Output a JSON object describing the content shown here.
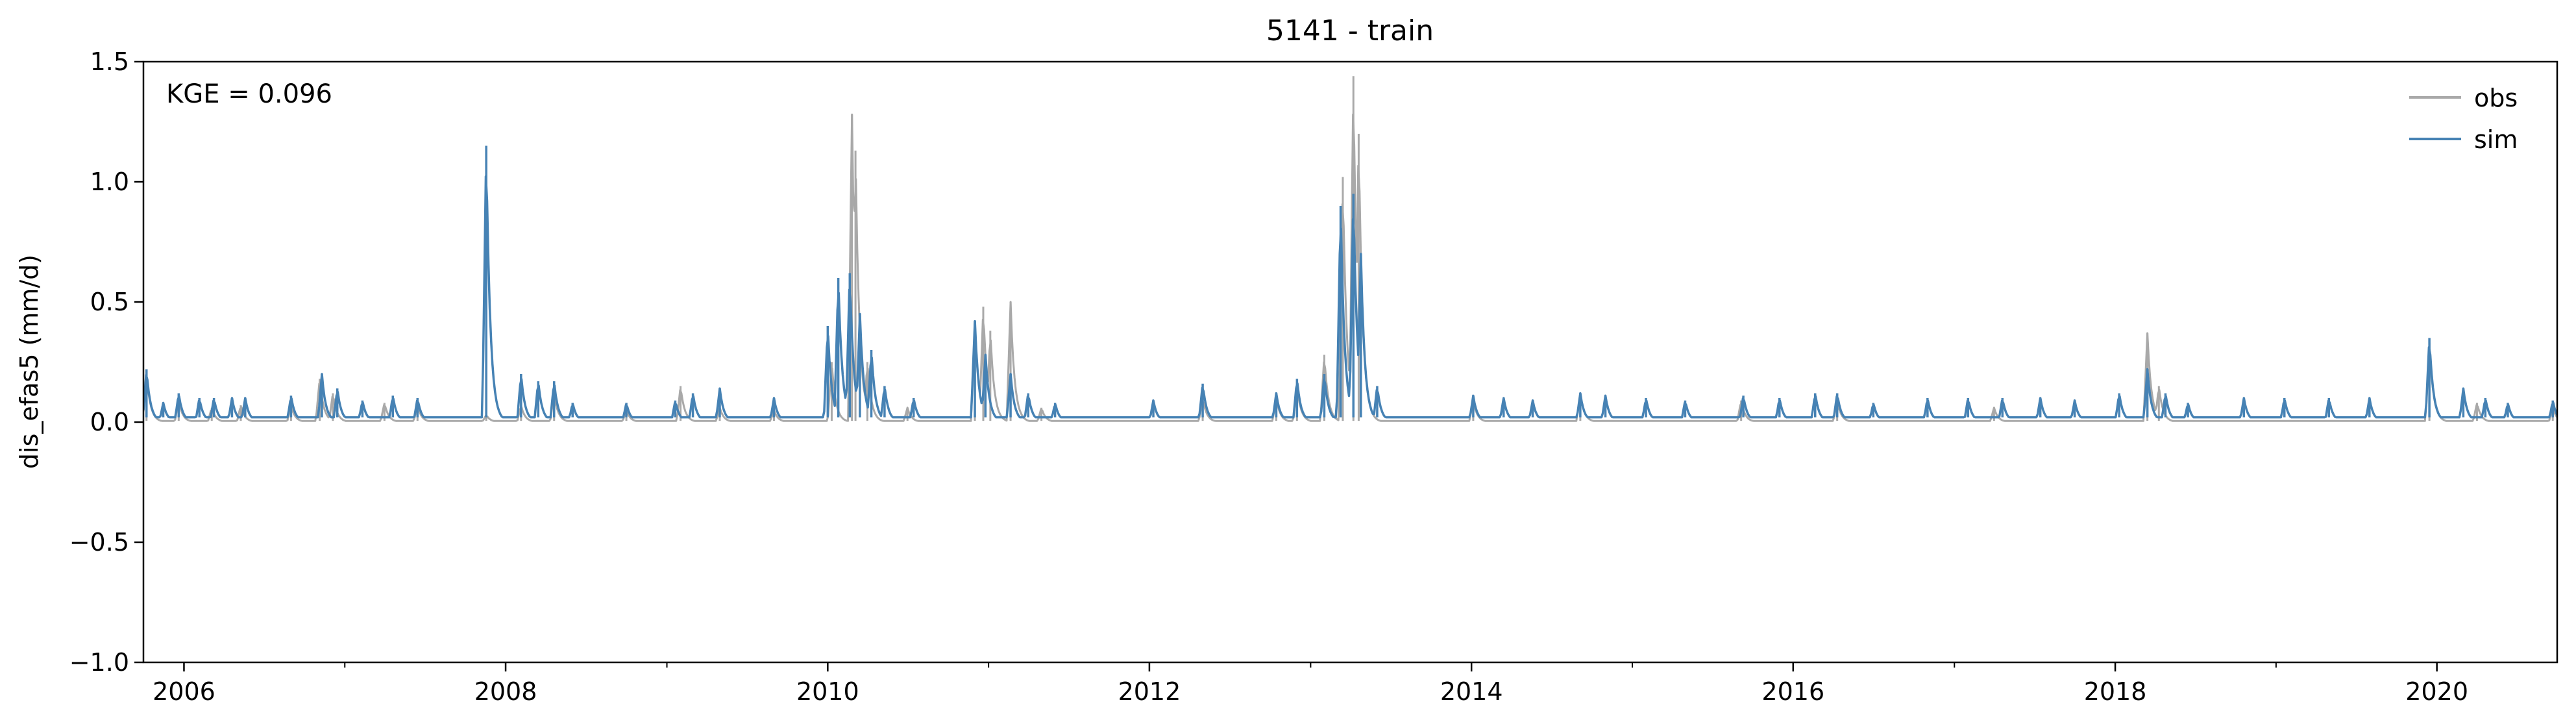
{
  "chart_data": {
    "type": "line",
    "title": "5141 - train",
    "xlabel": "",
    "ylabel": "dis_efas5 (mm/d)",
    "annotation": "KGE = 0.096",
    "xlim": [
      "2005-10-01",
      "2020-09-30"
    ],
    "ylim": [
      -1.0,
      1.5
    ],
    "x_ticks": [
      "2006",
      "2008",
      "2010",
      "2012",
      "2014",
      "2016",
      "2018",
      "2020"
    ],
    "y_ticks": [
      "−1.0",
      "−0.5",
      "0.0",
      "0.5",
      "1.0",
      "1.5"
    ],
    "grid": false,
    "legend": "top-right",
    "series": [
      {
        "name": "obs",
        "color": "#a9a9a9",
        "base": 0.005,
        "events": [
          [
            "2005-10-08",
            0.2
          ],
          [
            "2005-12-20",
            0.09
          ],
          [
            "2006-03-05",
            0.06
          ],
          [
            "2006-05-10",
            0.07
          ],
          [
            "2006-09-01",
            0.07
          ],
          [
            "2006-11-05",
            0.18
          ],
          [
            "2006-12-05",
            0.12
          ],
          [
            "2007-04-01",
            0.08
          ],
          [
            "2007-06-15",
            0.07
          ],
          [
            "2007-11-18",
            0.03
          ],
          [
            "2008-02-05",
            0.07
          ],
          [
            "2008-04-20",
            0.12
          ],
          [
            "2008-10-01",
            0.05
          ],
          [
            "2009-02-01",
            0.15
          ],
          [
            "2009-05-01",
            0.06
          ],
          [
            "2009-09-01",
            0.05
          ],
          [
            "2010-01-10",
            0.25
          ],
          [
            "2010-02-25",
            1.28
          ],
          [
            "2010-03-05",
            1.13
          ],
          [
            "2010-04-01",
            0.25
          ],
          [
            "2010-07-01",
            0.06
          ],
          [
            "2010-12-01",
            0.42
          ],
          [
            "2010-12-20",
            0.48
          ],
          [
            "2011-01-05",
            0.38
          ],
          [
            "2011-02-20",
            0.5
          ],
          [
            "2011-05-01",
            0.06
          ],
          [
            "2012-05-01",
            0.1
          ],
          [
            "2012-10-15",
            0.1
          ],
          [
            "2012-12-01",
            0.15
          ],
          [
            "2013-02-01",
            0.28
          ],
          [
            "2013-03-15",
            1.02
          ],
          [
            "2013-04-08",
            1.44
          ],
          [
            "2013-04-20",
            1.2
          ],
          [
            "2014-01-05",
            0.09
          ],
          [
            "2014-09-05",
            0.12
          ],
          [
            "2015-09-05",
            0.09
          ],
          [
            "2016-04-10",
            0.09
          ],
          [
            "2017-04-01",
            0.06
          ],
          [
            "2018-03-15",
            0.37
          ],
          [
            "2018-04-10",
            0.15
          ],
          [
            "2019-12-15",
            0.33
          ],
          [
            "2020-04-01",
            0.08
          ],
          [
            "2020-09-20",
            0.06
          ]
        ]
      },
      {
        "name": "sim",
        "color": "#4682b4",
        "base": 0.02,
        "events": [
          [
            "2005-10-08",
            0.22
          ],
          [
            "2005-11-15",
            0.08
          ],
          [
            "2005-12-20",
            0.12
          ],
          [
            "2006-02-05",
            0.1
          ],
          [
            "2006-03-10",
            0.1
          ],
          [
            "2006-04-20",
            0.1
          ],
          [
            "2006-05-20",
            0.1
          ],
          [
            "2006-09-01",
            0.11
          ],
          [
            "2006-11-10",
            0.2
          ],
          [
            "2006-12-15",
            0.14
          ],
          [
            "2007-02-10",
            0.09
          ],
          [
            "2007-04-20",
            0.11
          ],
          [
            "2007-06-15",
            0.1
          ],
          [
            "2007-11-18",
            1.15
          ],
          [
            "2008-02-05",
            0.2
          ],
          [
            "2008-03-15",
            0.17
          ],
          [
            "2008-04-20",
            0.17
          ],
          [
            "2008-06-01",
            0.08
          ],
          [
            "2008-10-01",
            0.08
          ],
          [
            "2009-01-20",
            0.09
          ],
          [
            "2009-03-01",
            0.12
          ],
          [
            "2009-05-01",
            0.14
          ],
          [
            "2009-09-01",
            0.1
          ],
          [
            "2010-01-01",
            0.4
          ],
          [
            "2010-01-25",
            0.6
          ],
          [
            "2010-02-20",
            0.62
          ],
          [
            "2010-03-15",
            0.45
          ],
          [
            "2010-04-10",
            0.3
          ],
          [
            "2010-05-10",
            0.15
          ],
          [
            "2010-07-15",
            0.1
          ],
          [
            "2010-12-01",
            0.42
          ],
          [
            "2010-12-25",
            0.28
          ],
          [
            "2011-02-20",
            0.2
          ],
          [
            "2011-04-01",
            0.12
          ],
          [
            "2011-06-01",
            0.08
          ],
          [
            "2012-01-10",
            0.09
          ],
          [
            "2012-05-01",
            0.16
          ],
          [
            "2012-10-15",
            0.12
          ],
          [
            "2012-12-01",
            0.18
          ],
          [
            "2013-02-01",
            0.2
          ],
          [
            "2013-03-10",
            0.9
          ],
          [
            "2013-04-08",
            0.95
          ],
          [
            "2013-04-25",
            0.7
          ],
          [
            "2013-06-01",
            0.15
          ],
          [
            "2014-01-05",
            0.11
          ],
          [
            "2014-03-15",
            0.1
          ],
          [
            "2014-05-20",
            0.09
          ],
          [
            "2014-09-05",
            0.12
          ],
          [
            "2014-11-01",
            0.11
          ],
          [
            "2015-02-01",
            0.1
          ],
          [
            "2015-05-01",
            0.09
          ],
          [
            "2015-09-10",
            0.11
          ],
          [
            "2015-12-01",
            0.1
          ],
          [
            "2016-02-20",
            0.12
          ],
          [
            "2016-04-10",
            0.12
          ],
          [
            "2016-07-01",
            0.08
          ],
          [
            "2016-11-01",
            0.1
          ],
          [
            "2017-02-01",
            0.1
          ],
          [
            "2017-04-20",
            0.1
          ],
          [
            "2017-07-15",
            0.1
          ],
          [
            "2017-10-01",
            0.09
          ],
          [
            "2018-01-10",
            0.12
          ],
          [
            "2018-03-15",
            0.22
          ],
          [
            "2018-04-25",
            0.12
          ],
          [
            "2018-06-15",
            0.08
          ],
          [
            "2018-10-20",
            0.1
          ],
          [
            "2019-01-20",
            0.1
          ],
          [
            "2019-05-01",
            0.1
          ],
          [
            "2019-08-01",
            0.1
          ],
          [
            "2019-12-15",
            0.35
          ],
          [
            "2020-03-01",
            0.14
          ],
          [
            "2020-04-20",
            0.1
          ],
          [
            "2020-06-10",
            0.08
          ],
          [
            "2020-09-20",
            0.09
          ]
        ]
      }
    ]
  }
}
